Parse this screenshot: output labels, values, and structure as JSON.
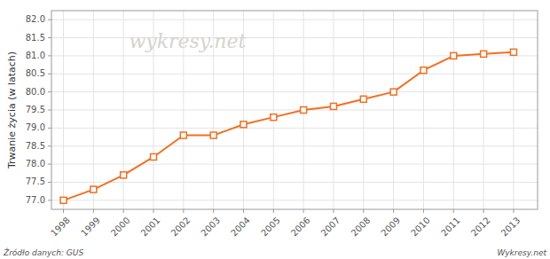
{
  "chart_data": {
    "type": "line",
    "y_label": "Trwanie życia (w latach)",
    "x": [
      1998,
      1999,
      2000,
      2001,
      2002,
      2003,
      2004,
      2005,
      2006,
      2007,
      2008,
      2009,
      2010,
      2011,
      2012,
      2013
    ],
    "values": [
      77.0,
      77.3,
      77.7,
      78.2,
      78.8,
      78.8,
      79.1,
      79.3,
      79.5,
      79.6,
      79.8,
      80.0,
      80.6,
      81.0,
      81.05,
      81.1
    ],
    "color": "#f07020",
    "marker": "square",
    "line_style": "solid",
    "xlim": [
      1997.6,
      2013.8
    ],
    "xticks": [
      1998,
      1999,
      2000,
      2001,
      2002,
      2003,
      2004,
      2005,
      2006,
      2007,
      2008,
      2009,
      2010,
      2011,
      2012,
      2013
    ],
    "ylim": [
      76.75,
      82.25
    ],
    "yticks": [
      {
        "value": 77.0,
        "label": "77.0"
      },
      77.5,
      {
        "value": 78.0,
        "label": "78.0"
      },
      78.5,
      {
        "value": 79.0,
        "label": "79.0"
      },
      79.5,
      {
        "value": 80.0,
        "label": "80.0"
      },
      80.5,
      {
        "value": 81.0,
        "label": "81.0"
      },
      81.5,
      {
        "value": 82.0,
        "label": "82.0"
      }
    ],
    "grid": true,
    "annotations": [
      "wykresy.net",
      "Źródło danych:  GUS",
      "Wykresy.net"
    ]
  }
}
